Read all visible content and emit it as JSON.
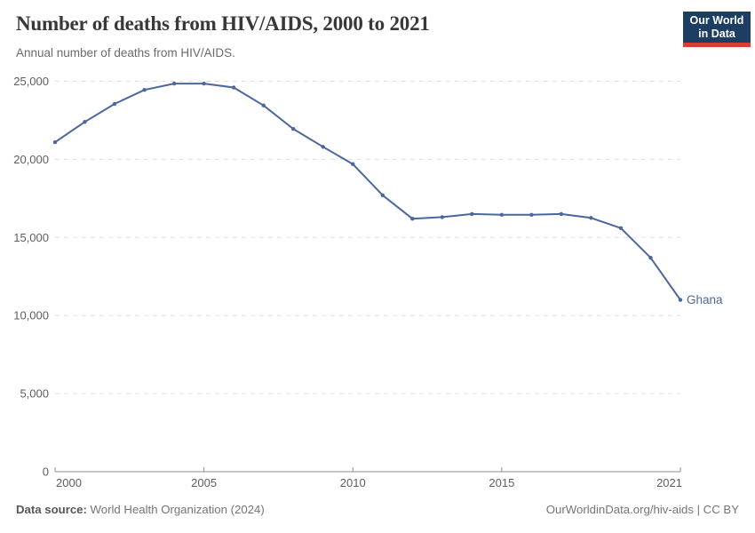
{
  "logo": {
    "line1": "Our World",
    "line2": "in Data",
    "bg_color": "#1d3d63",
    "bar_color": "#dc3b2f"
  },
  "chart_data": {
    "type": "line",
    "title": "Number of deaths from HIV/AIDS, 2000 to 2021",
    "subtitle": "Annual number of deaths from HIV/AIDS.",
    "xlabel": "",
    "ylabel": "",
    "xlim": [
      2000,
      2021
    ],
    "ylim": [
      0,
      25000
    ],
    "xticks": [
      2000,
      2005,
      2010,
      2015,
      2021
    ],
    "yticks": [
      0,
      5000,
      10000,
      15000,
      20000,
      25000
    ],
    "ytick_labels": [
      "0",
      "5,000",
      "10,000",
      "15,000",
      "20,000",
      "25,000"
    ],
    "grid": "horizontal-dashed",
    "legend_position": "end-of-line-label",
    "series": [
      {
        "name": "Ghana",
        "color": "#4a679e",
        "x": [
          2000,
          2001,
          2002,
          2003,
          2004,
          2005,
          2006,
          2007,
          2008,
          2009,
          2010,
          2011,
          2012,
          2013,
          2014,
          2015,
          2016,
          2017,
          2018,
          2019,
          2020,
          2021
        ],
        "values": [
          21100,
          22400,
          23550,
          24450,
          24850,
          24850,
          24600,
          23450,
          21950,
          20800,
          19700,
          17700,
          16200,
          16300,
          16500,
          16450,
          16450,
          16500,
          16250,
          15600,
          13700,
          11000
        ]
      }
    ]
  },
  "footer": {
    "source_label": "Data source:",
    "source_text": " World Health Organization (2024)",
    "attribution": "OurWorldinData.org/hiv-aids | CC BY"
  }
}
